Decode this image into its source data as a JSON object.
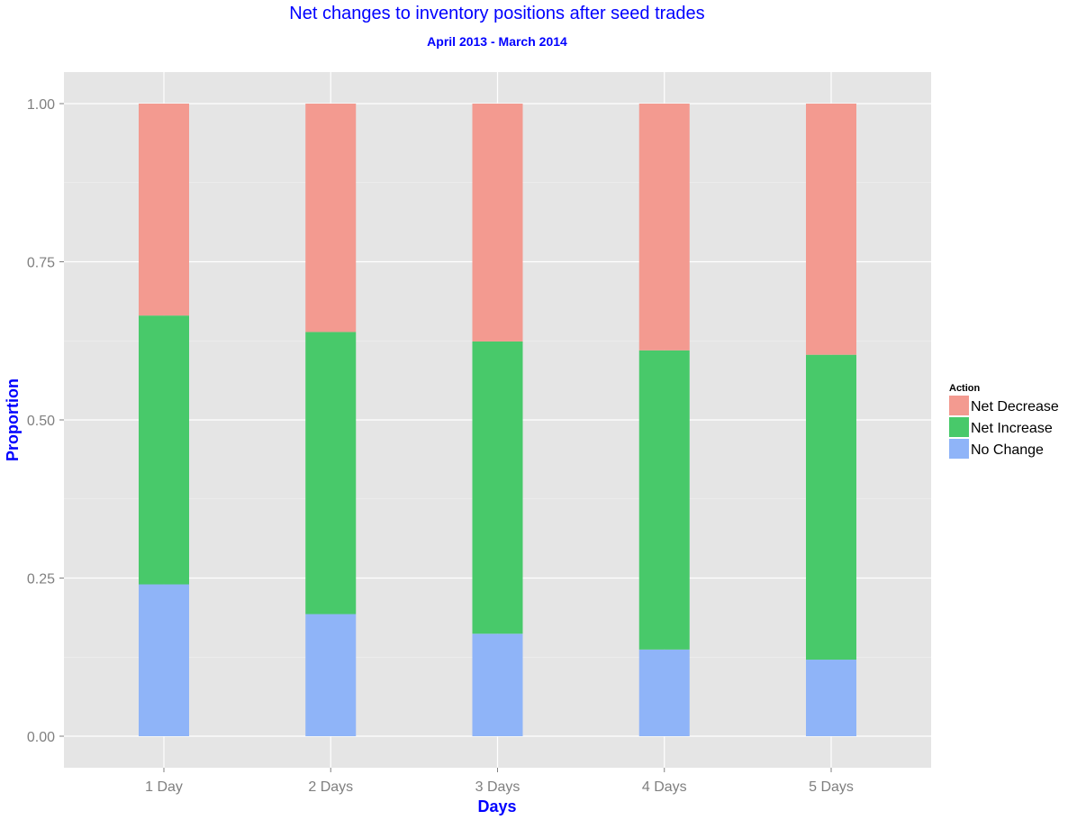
{
  "chart_data": {
    "type": "bar",
    "stacked": true,
    "title": "Net changes to inventory positions after seed trades",
    "subtitle": "April 2013 - March 2014",
    "xlabel": "Days",
    "ylabel": "Proportion",
    "categories": [
      "1 Day",
      "2 Days",
      "3 Days",
      "4 Days",
      "5 Days"
    ],
    "ylim": [
      0,
      1
    ],
    "yticks": [
      "0.00",
      "0.25",
      "0.50",
      "0.75",
      "1.00"
    ],
    "grid": true,
    "legend": {
      "title": "Action",
      "placement": "right",
      "entries": [
        "Net Decrease",
        "Net Increase",
        "No Change"
      ]
    },
    "series": [
      {
        "name": "No Change",
        "color": "#8fb4f8",
        "values": [
          0.24,
          0.193,
          0.162,
          0.137,
          0.121
        ]
      },
      {
        "name": "Net Increase",
        "color": "#48c96a",
        "values": [
          0.425,
          0.446,
          0.462,
          0.473,
          0.482
        ]
      },
      {
        "name": "Net Decrease",
        "color": "#f39a90",
        "values": [
          0.335,
          0.361,
          0.376,
          0.39,
          0.397
        ]
      }
    ],
    "panel_background": "#e5e5e5",
    "grid_color": "#ffffff"
  }
}
